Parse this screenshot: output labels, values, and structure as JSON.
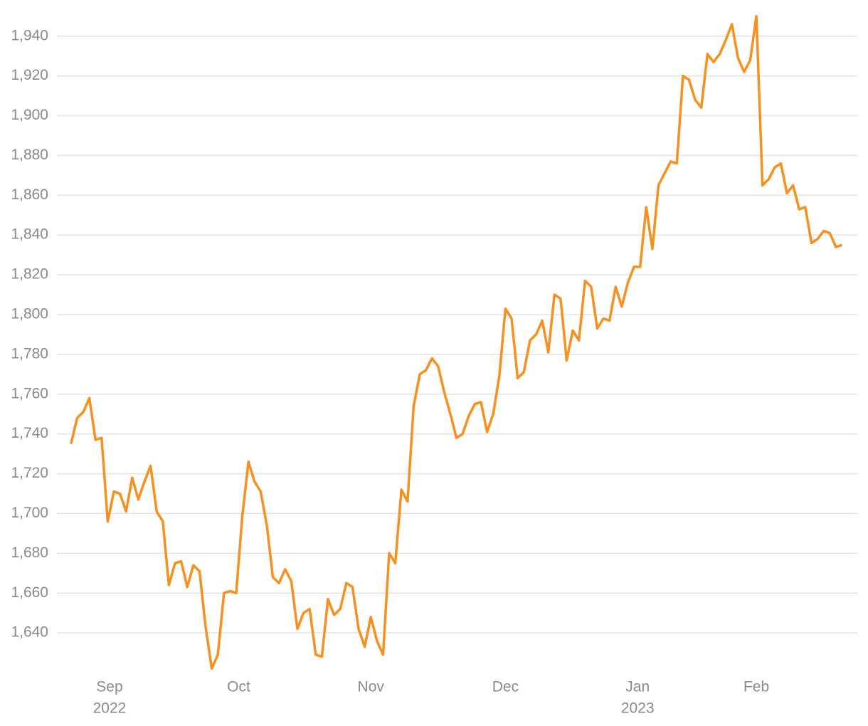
{
  "chart_data": {
    "type": "line",
    "categories": [
      null,
      null,
      null,
      null,
      null,
      null,
      null,
      null,
      null,
      null,
      null,
      null,
      null,
      null,
      null,
      null,
      null,
      null,
      null,
      null,
      null,
      null,
      null,
      null,
      null,
      null,
      null,
      null,
      null,
      null,
      null,
      null,
      null,
      null,
      null,
      null,
      null,
      null,
      null,
      null,
      null,
      null,
      null,
      null,
      null,
      null,
      null,
      null,
      null,
      null,
      null,
      null,
      null,
      null,
      null,
      null,
      null,
      null,
      null,
      null,
      null,
      null,
      null,
      null,
      null,
      null,
      null,
      null,
      null,
      null,
      null,
      null,
      null,
      null,
      null,
      null,
      null,
      null,
      null,
      null,
      null,
      null,
      null,
      null,
      null,
      null,
      null,
      null,
      null,
      null,
      null,
      null,
      null,
      null,
      null,
      null,
      null,
      null,
      null,
      null,
      null,
      null,
      null,
      null,
      null,
      null,
      null,
      null,
      null,
      null,
      null,
      null,
      null,
      null,
      null,
      null,
      null,
      null,
      null,
      null,
      null,
      null,
      null,
      null,
      null,
      null,
      null
    ],
    "values": [
      1735,
      1748,
      1751,
      1758,
      1737,
      1738,
      1696,
      1711,
      1710,
      1701,
      1718,
      1707,
      1716,
      1724,
      1701,
      1696,
      1664,
      1675,
      1676,
      1663,
      1674,
      1671,
      1643,
      1622,
      1629,
      1660,
      1661,
      1660,
      1699,
      1726,
      1716,
      1711,
      1694,
      1668,
      1665,
      1672,
      1666,
      1642,
      1650,
      1652,
      1629,
      1628,
      1657,
      1649,
      1652,
      1665,
      1663,
      1642,
      1633,
      1648,
      1636,
      1629,
      1680,
      1675,
      1712,
      1706,
      1754,
      1770,
      1772,
      1778,
      1774,
      1761,
      1750,
      1738,
      1740,
      1749,
      1755,
      1756,
      1741,
      1750,
      1769,
      1803,
      1798,
      1768,
      1771,
      1787,
      1790,
      1797,
      1781,
      1810,
      1808,
      1777,
      1792,
      1787,
      1817,
      1814,
      1793,
      1798,
      1797,
      1814,
      1804,
      1816,
      1824,
      1824,
      1854,
      1833,
      1865,
      1871,
      1877,
      1876,
      1920,
      1918,
      1908,
      1904,
      1931,
      1927,
      1931,
      1938,
      1946,
      1929,
      1922,
      1928,
      1950,
      1865,
      1868,
      1874,
      1876,
      1861,
      1865,
      1853,
      1854,
      1836,
      1838,
      1842,
      1841,
      1834,
      1835
    ],
    "color": "#f7901e",
    "xlim": [
      -2.3,
      128.5
    ],
    "xticks": [
      {
        "value": 6.3,
        "label": "Sep"
      },
      {
        "value": 27.4,
        "label": "Oct"
      },
      {
        "value": 49,
        "label": "Nov"
      },
      {
        "value": 71,
        "label": "Dec"
      },
      {
        "value": 92.6,
        "label": "Jan"
      },
      {
        "value": 112,
        "label": "Feb"
      }
    ],
    "xtick_years": [
      {
        "value": 6.3,
        "label": "2022"
      },
      {
        "value": 92.6,
        "label": "2023"
      }
    ],
    "ylim": [
      1620,
      1951
    ],
    "yticks": [
      {
        "value": 1640,
        "label": "1,640"
      },
      {
        "value": 1660,
        "label": "1,660"
      },
      {
        "value": 1680,
        "label": "1,680"
      },
      {
        "value": 1700,
        "label": "1,700"
      },
      {
        "value": 1720,
        "label": "1,720"
      },
      {
        "value": 1740,
        "label": "1,740"
      },
      {
        "value": 1760,
        "label": "1,760"
      },
      {
        "value": 1780,
        "label": "1,780"
      },
      {
        "value": 1800,
        "label": "1,800"
      },
      {
        "value": 1820,
        "label": "1,820"
      },
      {
        "value": 1840,
        "label": "1,840"
      },
      {
        "value": 1860,
        "label": "1,860"
      },
      {
        "value": 1880,
        "label": "1,880"
      },
      {
        "value": 1900,
        "label": "1,900"
      },
      {
        "value": 1920,
        "label": "1,920"
      },
      {
        "value": 1940,
        "label": "1,940"
      }
    ],
    "grid": true
  }
}
